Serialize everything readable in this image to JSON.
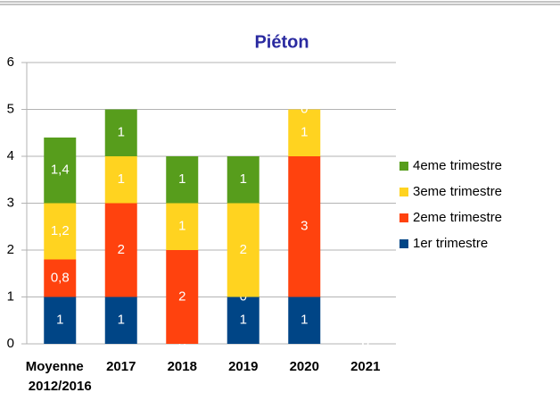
{
  "chart_data": {
    "type": "stacked_bar",
    "title": "Piéton",
    "categories": [
      "Moyenne 2012/2016",
      "2017",
      "2018",
      "2019",
      "2020",
      "2021"
    ],
    "series": [
      {
        "name": "1er trimestre",
        "color": "#004586",
        "values": [
          1,
          1,
          0,
          1,
          1,
          0
        ]
      },
      {
        "name": "2eme trimestre",
        "color": "#ff420e",
        "values": [
          0.8,
          2,
          2,
          0,
          3,
          0
        ],
        "value_labels": [
          "0,8",
          "2",
          "2",
          "0",
          "3",
          "0"
        ]
      },
      {
        "name": "3eme trimestre",
        "color": "#ffd320",
        "values": [
          1.2,
          1,
          1,
          2,
          1,
          0
        ],
        "value_labels": [
          "1,2",
          "1",
          "1",
          "2",
          "1",
          "0"
        ]
      },
      {
        "name": "4eme trimestre",
        "color": "#579d1c",
        "values": [
          1.4,
          1,
          1,
          1,
          0,
          0
        ],
        "value_labels": [
          "1,4",
          "1",
          "1",
          "1",
          "0",
          "0"
        ]
      }
    ],
    "ylim": [
      0,
      6
    ],
    "yticks": [
      0,
      1,
      2,
      3,
      4,
      5,
      6
    ],
    "grid": true,
    "legend": "right"
  }
}
